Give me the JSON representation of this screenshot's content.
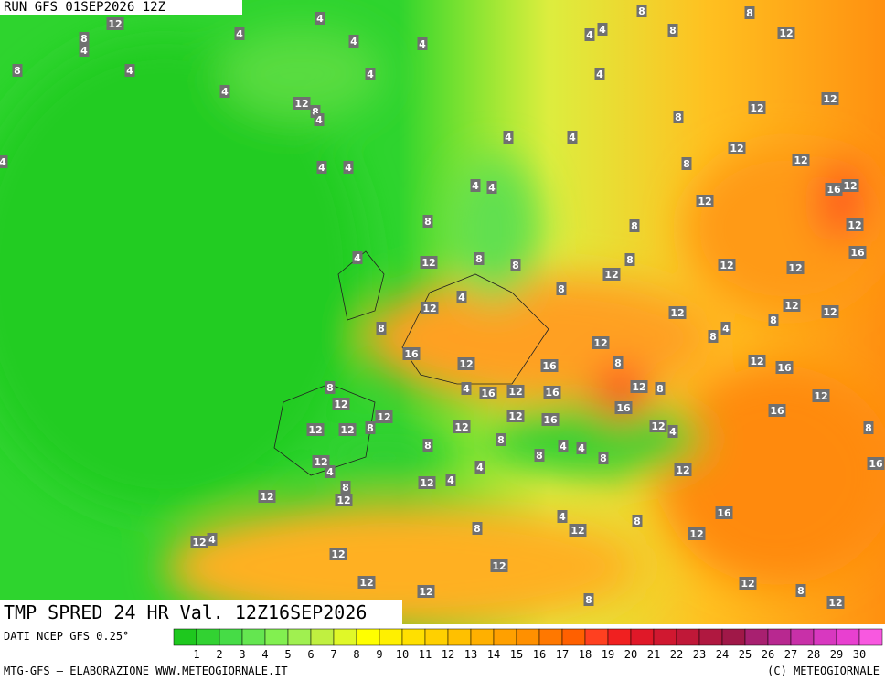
{
  "header": "RUN GFS 01SEP2026 12Z",
  "title": "TMP SPRED 24 HR Val. 12Z16SEP2026",
  "source": "DATI NCEP GFS 0.25°",
  "footer_left": "MTG-GFS — ELABORAZIONE WWW.METEOGIORNALE.IT",
  "footer_right": "(C) METEOGIORNALE",
  "scale": {
    "ticks": [
      1,
      2,
      3,
      4,
      5,
      6,
      7,
      8,
      9,
      10,
      11,
      12,
      13,
      14,
      15,
      16,
      17,
      18,
      19,
      20,
      21,
      22,
      23,
      24,
      25,
      26,
      27,
      28,
      29,
      30
    ],
    "colors": [
      "#1ec81e",
      "#32d232",
      "#46dc46",
      "#64e650",
      "#82f050",
      "#a0f050",
      "#c0f040",
      "#e0f828",
      "#ffff00",
      "#fff000",
      "#ffe000",
      "#ffd000",
      "#ffc000",
      "#ffb000",
      "#ffa000",
      "#ff9000",
      "#ff7800",
      "#ff6000",
      "#ff4020",
      "#f02020",
      "#e01828",
      "#d01830",
      "#c01838",
      "#b01840",
      "#a01848",
      "#a82070",
      "#b82890",
      "#c830a8",
      "#d838c0",
      "#e840d0",
      "#f858e0"
    ]
  },
  "map_labels": [
    12,
    4,
    4,
    8,
    4,
    4,
    4,
    4,
    4,
    8,
    8,
    8,
    12,
    8,
    4,
    4,
    4,
    4,
    12,
    8,
    4,
    12,
    8,
    12,
    4,
    4,
    4,
    4,
    4,
    12,
    8,
    12,
    4,
    4,
    16,
    12,
    12,
    8,
    8,
    12,
    4,
    12,
    8,
    8,
    8,
    12,
    16,
    12,
    12,
    4,
    8,
    12,
    12,
    12,
    12,
    8,
    4,
    8,
    8,
    12,
    16,
    12,
    16,
    12,
    16,
    8,
    8,
    4,
    16,
    12,
    16,
    12,
    8,
    12,
    12,
    12,
    16,
    16,
    12,
    12,
    16,
    12,
    12,
    8,
    12,
    4,
    8,
    8,
    8,
    8,
    4,
    4,
    8,
    12,
    4,
    8,
    12,
    12,
    12,
    4,
    4,
    12,
    16,
    8,
    4,
    12,
    8,
    12,
    16,
    12,
    4,
    12,
    12,
    12,
    12,
    12,
    8,
    8,
    12,
    12
  ]
}
